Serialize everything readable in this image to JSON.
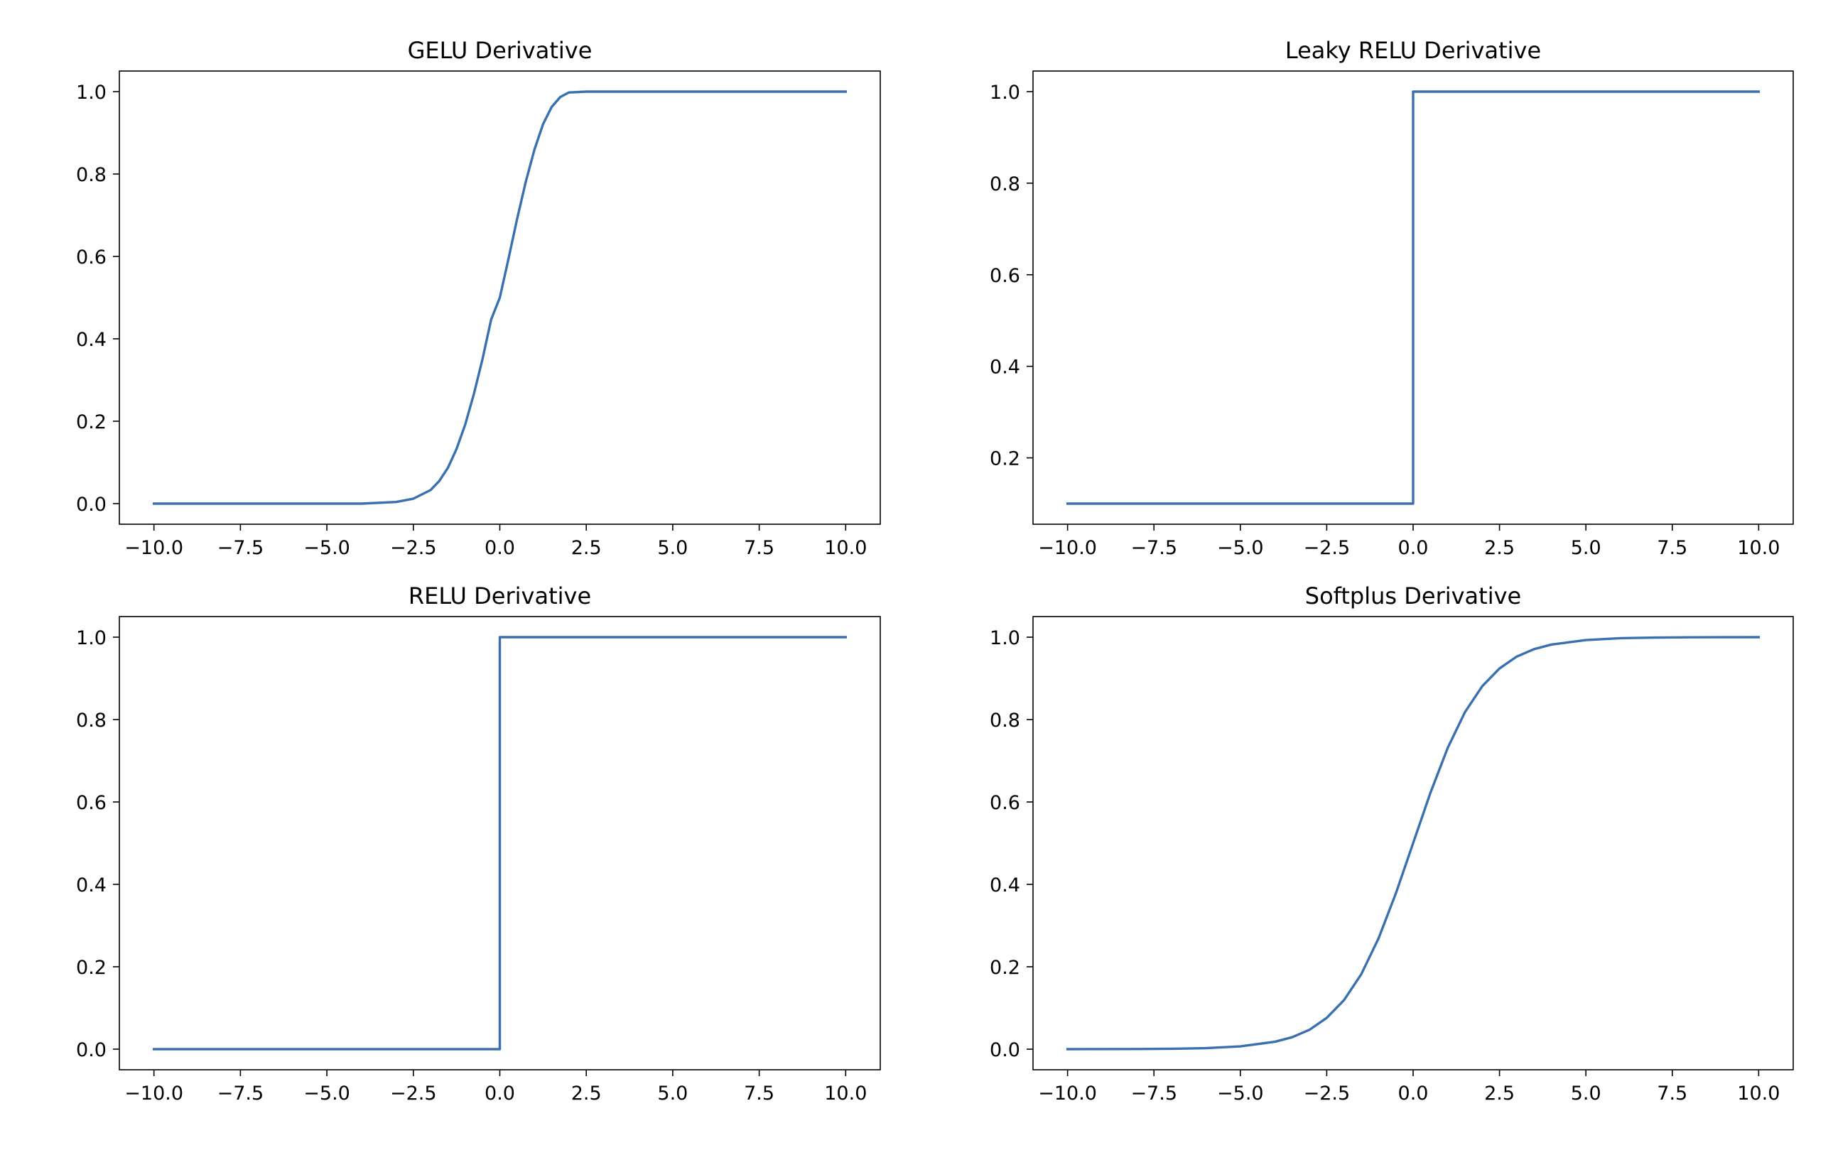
{
  "colors": {
    "line": "#3a70b0",
    "axes": "#000000",
    "background": "#ffffff"
  },
  "chart_data": [
    {
      "type": "line",
      "title": "GELU Derivative",
      "xlabel": "",
      "ylabel": "",
      "xlim": [
        -11.0,
        11.0
      ],
      "ylim": [
        -0.05,
        1.05
      ],
      "xticks": [
        -10.0,
        -7.5,
        -5.0,
        -2.5,
        0.0,
        2.5,
        5.0,
        7.5,
        10.0
      ],
      "xtick_labels": [
        "−10.0",
        "−7.5",
        "−5.0",
        "−2.5",
        "0.0",
        "2.5",
        "5.0",
        "7.5",
        "10.0"
      ],
      "yticks": [
        0.0,
        0.2,
        0.4,
        0.6,
        0.8,
        1.0
      ],
      "ytick_labels": [
        "0.0",
        "0.2",
        "0.4",
        "0.6",
        "0.8",
        "1.0"
      ],
      "grid": false,
      "series": [
        {
          "x": [
            -10,
            -4,
            -3,
            -2.5,
            -2,
            -1.75,
            -1.5,
            -1.25,
            -1,
            -0.75,
            -0.5,
            -0.25,
            0,
            0.25,
            0.5,
            0.75,
            1,
            1.25,
            1.5,
            1.75,
            2,
            2.5,
            3,
            4,
            10
          ],
          "y": [
            0,
            0,
            0.004,
            0.012,
            0.033,
            0.055,
            0.087,
            0.133,
            0.192,
            0.266,
            0.351,
            0.447,
            0.5,
            0.594,
            0.691,
            0.781,
            0.859,
            0.921,
            0.963,
            0.987,
            0.998,
            1.0,
            1.0,
            1.0,
            1.0
          ]
        }
      ]
    },
    {
      "type": "line",
      "title": "Leaky RELU Derivative",
      "xlabel": "",
      "ylabel": "",
      "xlim": [
        -11.0,
        11.0
      ],
      "ylim": [
        0.055,
        1.045
      ],
      "xticks": [
        -10.0,
        -7.5,
        -5.0,
        -2.5,
        0.0,
        2.5,
        5.0,
        7.5,
        10.0
      ],
      "xtick_labels": [
        "−10.0",
        "−7.5",
        "−5.0",
        "−2.5",
        "0.0",
        "2.5",
        "5.0",
        "7.5",
        "10.0"
      ],
      "yticks": [
        0.2,
        0.4,
        0.6,
        0.8,
        1.0
      ],
      "ytick_labels": [
        "0.2",
        "0.4",
        "0.6",
        "0.8",
        "1.0"
      ],
      "grid": false,
      "series": [
        {
          "x": [
            -10,
            0,
            0,
            10
          ],
          "y": [
            0.1,
            0.1,
            1.0,
            1.0
          ]
        }
      ]
    },
    {
      "type": "line",
      "title": "RELU Derivative",
      "xlabel": "",
      "ylabel": "",
      "xlim": [
        -11.0,
        11.0
      ],
      "ylim": [
        -0.05,
        1.05
      ],
      "xticks": [
        -10.0,
        -7.5,
        -5.0,
        -2.5,
        0.0,
        2.5,
        5.0,
        7.5,
        10.0
      ],
      "xtick_labels": [
        "−10.0",
        "−7.5",
        "−5.0",
        "−2.5",
        "0.0",
        "2.5",
        "5.0",
        "7.5",
        "10.0"
      ],
      "yticks": [
        0.0,
        0.2,
        0.4,
        0.6,
        0.8,
        1.0
      ],
      "ytick_labels": [
        "0.0",
        "0.2",
        "0.4",
        "0.6",
        "0.8",
        "1.0"
      ],
      "grid": false,
      "series": [
        {
          "x": [
            -10,
            0,
            0,
            10
          ],
          "y": [
            0.0,
            0.0,
            1.0,
            1.0
          ]
        }
      ]
    },
    {
      "type": "line",
      "title": "Softplus Derivative",
      "xlabel": "",
      "ylabel": "",
      "xlim": [
        -11.0,
        11.0
      ],
      "ylim": [
        -0.05,
        1.05
      ],
      "xticks": [
        -10.0,
        -7.5,
        -5.0,
        -2.5,
        0.0,
        2.5,
        5.0,
        7.5,
        10.0
      ],
      "xtick_labels": [
        "−10.0",
        "−7.5",
        "−5.0",
        "−2.5",
        "0.0",
        "2.5",
        "5.0",
        "7.5",
        "10.0"
      ],
      "yticks": [
        0.0,
        0.2,
        0.4,
        0.6,
        0.8,
        1.0
      ],
      "ytick_labels": [
        "0.0",
        "0.2",
        "0.4",
        "0.6",
        "0.8",
        "1.0"
      ],
      "grid": false,
      "series": [
        {
          "x": [
            -10,
            -8,
            -7,
            -6,
            -5,
            -4,
            -3.5,
            -3,
            -2.5,
            -2,
            -1.5,
            -1,
            -0.5,
            0,
            0.5,
            1,
            1.5,
            2,
            2.5,
            3,
            3.5,
            4,
            5,
            6,
            7,
            8,
            10
          ],
          "y": [
            0.0,
            0.0003,
            0.0009,
            0.0025,
            0.0067,
            0.018,
            0.029,
            0.047,
            0.076,
            0.119,
            0.182,
            0.269,
            0.378,
            0.5,
            0.622,
            0.731,
            0.818,
            0.881,
            0.924,
            0.953,
            0.971,
            0.982,
            0.993,
            0.9975,
            0.9991,
            0.9997,
            1.0
          ]
        }
      ]
    }
  ]
}
